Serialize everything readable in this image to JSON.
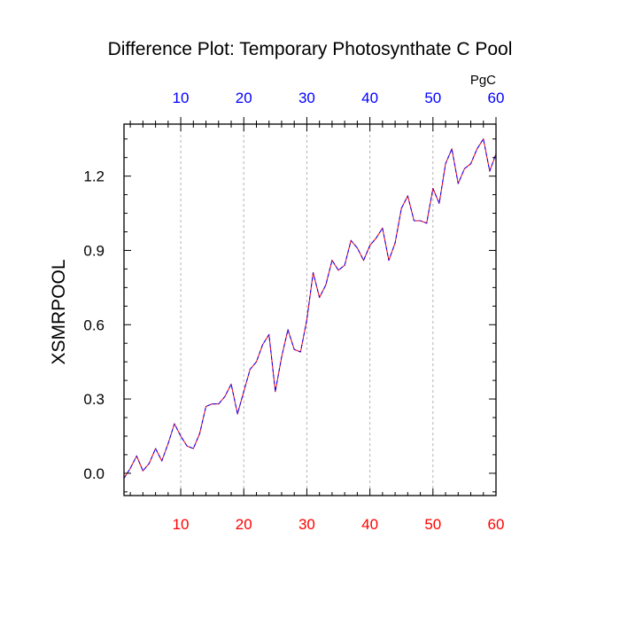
{
  "chart_data": {
    "type": "line",
    "title": "Difference Plot: Temporary Photosynthate C Pool",
    "ylabel": "XSMRPOOL",
    "units_label": "PgC",
    "xlim": [
      1,
      60
    ],
    "ylim": [
      -0.09,
      1.41
    ],
    "bottom_ticks": [
      "10",
      "20",
      "30",
      "40",
      "50",
      "60"
    ],
    "top_ticks": [
      "10",
      "20",
      "30",
      "40",
      "50",
      "60"
    ],
    "left_ticks": [
      "0.0",
      "0.3",
      "0.6",
      "0.9",
      "1.2"
    ],
    "grid_x": true,
    "grid_y": false,
    "colors": {
      "bottom_tick_labels": "#ff0000",
      "top_tick_labels": "#0000ff",
      "line_primary": "#ff0000",
      "line_overlay": "#0000ff"
    },
    "x": [
      1,
      2,
      3,
      4,
      5,
      6,
      7,
      8,
      9,
      10,
      11,
      12,
      13,
      14,
      15,
      16,
      17,
      18,
      19,
      20,
      21,
      22,
      23,
      24,
      25,
      26,
      27,
      28,
      29,
      30,
      31,
      32,
      33,
      34,
      35,
      36,
      37,
      38,
      39,
      40,
      41,
      42,
      43,
      44,
      45,
      46,
      47,
      48,
      49,
      50,
      51,
      52,
      53,
      54,
      55,
      56,
      57,
      58,
      59,
      60
    ],
    "series": [
      {
        "values": [
          -0.02,
          0.02,
          0.07,
          0.01,
          0.04,
          0.1,
          0.05,
          0.12,
          0.2,
          0.15,
          0.11,
          0.1,
          0.16,
          0.27,
          0.28,
          0.28,
          0.31,
          0.36,
          0.24,
          0.33,
          0.42,
          0.45,
          0.52,
          0.56,
          0.33,
          0.47,
          0.58,
          0.5,
          0.49,
          0.62,
          0.81,
          0.71,
          0.76,
          0.86,
          0.82,
          0.84,
          0.94,
          0.91,
          0.86,
          0.92,
          0.95,
          0.99,
          0.86,
          0.93,
          1.07,
          1.12,
          1.02,
          1.02,
          1.01,
          1.15,
          1.09,
          1.25,
          1.31,
          1.17,
          1.23,
          1.25,
          1.31,
          1.35,
          1.22,
          1.29
        ]
      }
    ]
  }
}
